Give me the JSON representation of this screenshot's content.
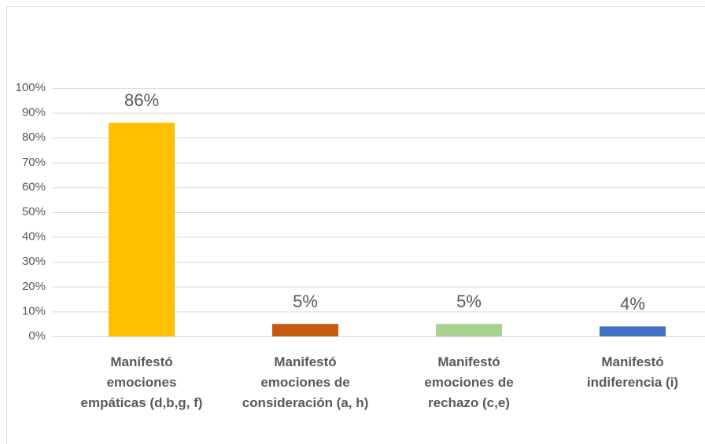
{
  "chart_data": {
    "type": "bar",
    "categories": [
      [
        "Manifestó",
        "emociones",
        "empáticas (d,b,g, f)"
      ],
      [
        "Manifestó",
        "emociones de",
        "consideración (a, h)"
      ],
      [
        "Manifestó",
        "emociones de",
        "rechazo (c,e)"
      ],
      [
        "Manifestó",
        "indiferencia (i)"
      ]
    ],
    "values": [
      86,
      5,
      5,
      4
    ],
    "value_labels": [
      "86%",
      "5%",
      "5%",
      "4%"
    ],
    "colors": [
      "#ffc000",
      "#c55a11",
      "#a9d18e",
      "#4472c4"
    ],
    "ylim": [
      0,
      100
    ],
    "yticks": [
      {
        "value": 0,
        "label": "0%"
      },
      {
        "value": 10,
        "label": "10%"
      },
      {
        "value": 20,
        "label": "20%"
      },
      {
        "value": 30,
        "label": "30%"
      },
      {
        "value": 40,
        "label": "40%"
      },
      {
        "value": 50,
        "label": "50%"
      },
      {
        "value": 60,
        "label": "60%"
      },
      {
        "value": 70,
        "label": "70%"
      },
      {
        "value": 80,
        "label": "80%"
      },
      {
        "value": 90,
        "label": "90%"
      },
      {
        "value": 100,
        "label": "100%"
      }
    ],
    "grid": true
  }
}
